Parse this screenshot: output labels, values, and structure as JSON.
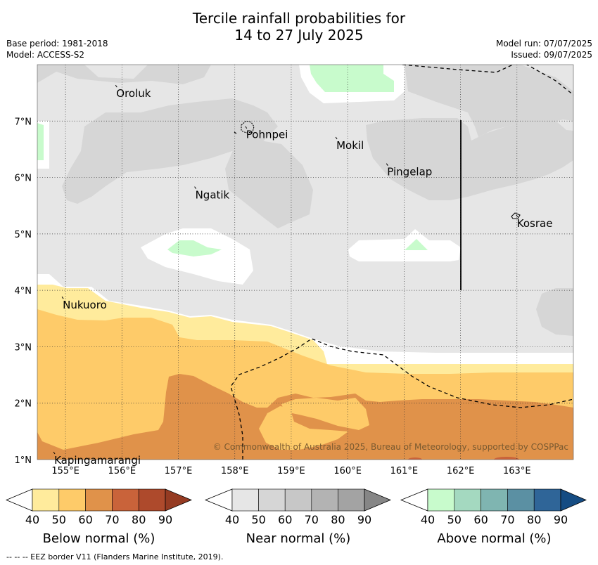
{
  "title": {
    "line1": "Tercile rainfall probabilities for",
    "line2": "14 to 27 July 2025"
  },
  "header": {
    "base_period": "Base period: 1981-2018",
    "model": "Model: ACCESS-S2",
    "model_run": "Model run: 07/07/2025",
    "issued": "Issued: 09/07/2025"
  },
  "map": {
    "lon_range": [
      154.5,
      164.0
    ],
    "lat_range": [
      1.0,
      8.0
    ],
    "lon_ticks": [
      "155°E",
      "156°E",
      "157°E",
      "158°E",
      "159°E",
      "160°E",
      "161°E",
      "162°E",
      "163°E"
    ],
    "lat_ticks": [
      "7°N",
      "6°N",
      "5°N",
      "4°N",
      "3°N",
      "2°N",
      "1°N"
    ],
    "places": [
      {
        "name": "Oroluk",
        "lon": 155.9,
        "lat": 7.6
      },
      {
        "name": "Pohnpei",
        "lon": 158.2,
        "lat": 6.87
      },
      {
        "name": "Mokil",
        "lon": 159.8,
        "lat": 6.68
      },
      {
        "name": "Pingelap",
        "lon": 160.7,
        "lat": 6.21
      },
      {
        "name": "Ngatik",
        "lon": 157.3,
        "lat": 5.8
      },
      {
        "name": "Kosrae",
        "lon": 163.0,
        "lat": 5.3
      },
      {
        "name": "Nukuoro",
        "lon": 154.95,
        "lat": 3.85
      },
      {
        "name": "Kapingamarangi",
        "lon": 154.8,
        "lat": 1.1
      }
    ],
    "copyright": "© Commonwealth of Australia 2025, Bureau of Meteorology, supported by COSPPac"
  },
  "colorbars": [
    {
      "title": "Below normal (%)",
      "labels": [
        "40",
        "50",
        "60",
        "70",
        "80",
        "90"
      ],
      "colors": [
        "#ffeb9c",
        "#fecb69",
        "#e0924a",
        "#c9633a",
        "#ae4a2c",
        "#953b22"
      ]
    },
    {
      "title": "Near normal (%)",
      "labels": [
        "40",
        "50",
        "60",
        "70",
        "80",
        "90"
      ],
      "colors": [
        "#e6e6e6",
        "#d6d6d6",
        "#c7c7c7",
        "#b3b3b3",
        "#a3a3a3",
        "#868686"
      ]
    },
    {
      "title": "Above normal (%)",
      "labels": [
        "40",
        "50",
        "60",
        "70",
        "80",
        "90"
      ],
      "colors": [
        "#c8fbcc",
        "#a4d9c0",
        "#7fb5b1",
        "#5b90a3",
        "#2f6598",
        "#154c83"
      ]
    }
  ],
  "footnote": "--  --  -- EEZ border V11 (Flanders Marine Institute, 2019)."
}
